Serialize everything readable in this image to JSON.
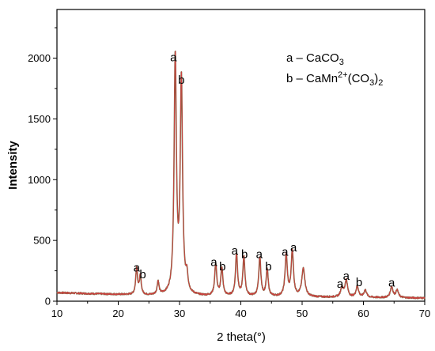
{
  "chart_data": {
    "type": "line",
    "title": "",
    "xlabel": "2 theta(°)",
    "ylabel": "Intensity",
    "xlim": [
      10,
      70
    ],
    "ylim": [
      0,
      2400
    ],
    "x_ticks": [
      10,
      20,
      30,
      40,
      50,
      60,
      70
    ],
    "y_ticks": [
      0,
      500,
      1000,
      1500,
      2000
    ],
    "grid": false,
    "legend": {
      "placement": "top-right",
      "entries": [
        {
          "prefix": "a – CaCO",
          "sub1": "3",
          "sup": "",
          "mid": "",
          "sub2": ""
        },
        {
          "prefix": "b – CaMn",
          "sub1": "",
          "sup": "2+",
          "mid": "(CO",
          "sub2": "3",
          "suffix": ")",
          "sub3": "2"
        }
      ]
    },
    "series": [
      {
        "color": "#d04040",
        "baseline": [
          [
            10,
            70
          ],
          [
            15,
            62
          ],
          [
            20,
            55
          ],
          [
            25,
            45
          ],
          [
            30,
            42
          ],
          [
            35,
            40
          ],
          [
            40,
            38
          ],
          [
            45,
            36
          ],
          [
            50,
            34
          ],
          [
            55,
            32
          ],
          [
            60,
            30
          ],
          [
            65,
            28
          ],
          [
            70,
            26
          ]
        ],
        "peaks": [
          {
            "x": 23.0,
            "y": 220,
            "w": 0.18
          },
          {
            "x": 23.6,
            "y": 150,
            "w": 0.18
          },
          {
            "x": 26.5,
            "y": 110,
            "w": 0.18
          },
          {
            "x": 29.3,
            "y": 1940,
            "w": 0.22
          },
          {
            "x": 30.3,
            "y": 1760,
            "w": 0.22
          },
          {
            "x": 31.2,
            "y": 130,
            "w": 0.2
          },
          {
            "x": 35.9,
            "y": 260,
            "w": 0.2
          },
          {
            "x": 36.9,
            "y": 230,
            "w": 0.2
          },
          {
            "x": 39.3,
            "y": 350,
            "w": 0.2
          },
          {
            "x": 40.5,
            "y": 320,
            "w": 0.2
          },
          {
            "x": 43.1,
            "y": 320,
            "w": 0.2
          },
          {
            "x": 44.3,
            "y": 220,
            "w": 0.2
          },
          {
            "x": 47.4,
            "y": 340,
            "w": 0.22
          },
          {
            "x": 48.4,
            "y": 370,
            "w": 0.22
          },
          {
            "x": 50.2,
            "y": 230,
            "w": 0.3
          },
          {
            "x": 56.5,
            "y": 80,
            "w": 0.25
          },
          {
            "x": 57.2,
            "y": 140,
            "w": 0.25
          },
          {
            "x": 59.0,
            "y": 90,
            "w": 0.25
          },
          {
            "x": 60.3,
            "y": 60,
            "w": 0.25
          },
          {
            "x": 64.6,
            "y": 90,
            "w": 0.25
          },
          {
            "x": 65.5,
            "y": 60,
            "w": 0.25
          }
        ]
      }
    ],
    "annotations": [
      {
        "text": "a",
        "x": 23.0,
        "y": 245
      },
      {
        "text": "b",
        "x": 24.0,
        "y": 190
      },
      {
        "text": "a",
        "x": 29.0,
        "y": 1975
      },
      {
        "text": "b",
        "x": 30.3,
        "y": 1790
      },
      {
        "text": "a",
        "x": 35.6,
        "y": 290
      },
      {
        "text": "b",
        "x": 37.0,
        "y": 255
      },
      {
        "text": "a",
        "x": 39.0,
        "y": 385
      },
      {
        "text": "b",
        "x": 40.6,
        "y": 355
      },
      {
        "text": "a",
        "x": 43.0,
        "y": 355
      },
      {
        "text": "b",
        "x": 44.5,
        "y": 255
      },
      {
        "text": "a",
        "x": 47.2,
        "y": 375
      },
      {
        "text": "a",
        "x": 48.6,
        "y": 410
      },
      {
        "text": "a",
        "x": 56.2,
        "y": 110
      },
      {
        "text": "a",
        "x": 57.2,
        "y": 175
      },
      {
        "text": "b",
        "x": 59.3,
        "y": 125
      },
      {
        "text": "a",
        "x": 64.6,
        "y": 120
      }
    ]
  }
}
